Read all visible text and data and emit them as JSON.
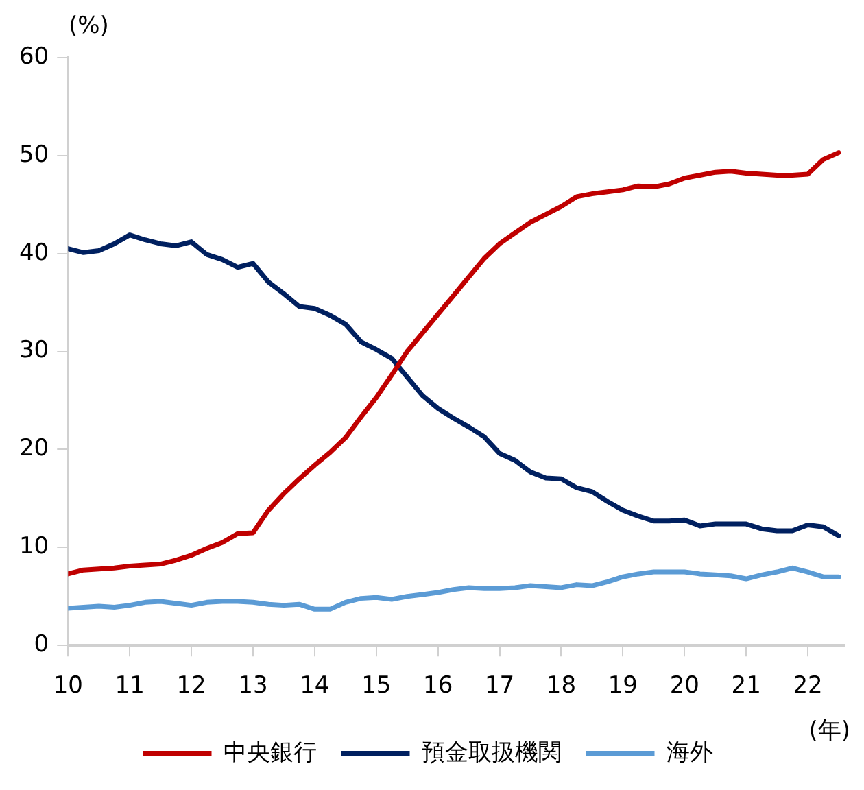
{
  "chart_data": {
    "type": "line",
    "ylabel": "(%)",
    "xlabel": "(年)",
    "x": [
      10,
      10.25,
      10.5,
      10.75,
      11,
      11.25,
      11.5,
      11.75,
      12,
      12.25,
      12.5,
      12.75,
      13,
      13.25,
      13.5,
      13.75,
      14,
      14.25,
      14.5,
      14.75,
      15,
      15.25,
      15.5,
      15.75,
      16,
      16.25,
      16.5,
      16.75,
      17,
      17.25,
      17.5,
      17.75,
      18,
      18.25,
      18.5,
      18.75,
      19,
      19.25,
      19.5,
      19.75,
      20,
      20.25,
      20.5,
      20.75,
      21,
      21.25,
      21.5,
      21.75,
      22,
      22.25,
      22.5
    ],
    "series": [
      {
        "name": "中央銀行",
        "color": "#c00000",
        "values": [
          7.3,
          7.7,
          7.8,
          7.9,
          8.1,
          8.2,
          8.3,
          8.7,
          9.2,
          9.9,
          10.5,
          11.4,
          11.5,
          13.8,
          15.5,
          17.0,
          18.4,
          19.7,
          21.2,
          23.3,
          25.3,
          27.6,
          30.0,
          31.9,
          33.8,
          35.7,
          37.6,
          39.5,
          41.0,
          42.1,
          43.2,
          44.0,
          44.8,
          45.8,
          46.1,
          46.3,
          46.5,
          46.9,
          46.8,
          47.1,
          47.7,
          48.0,
          48.3,
          48.4,
          48.2,
          48.1,
          48.0,
          48.0,
          48.1,
          49.6,
          50.3
        ]
      },
      {
        "name": "預金取扱機関",
        "color": "#002060",
        "values": [
          40.5,
          40.1,
          40.3,
          41.0,
          41.9,
          41.4,
          41.0,
          40.8,
          41.2,
          39.9,
          39.4,
          38.6,
          39.0,
          37.1,
          35.9,
          34.6,
          34.4,
          33.7,
          32.8,
          31.0,
          30.2,
          29.3,
          27.4,
          25.5,
          24.2,
          23.2,
          22.3,
          21.3,
          19.6,
          18.9,
          17.7,
          17.1,
          17.0,
          16.1,
          15.7,
          14.7,
          13.8,
          13.2,
          12.7,
          12.7,
          12.8,
          12.2,
          12.4,
          12.4,
          12.4,
          11.9,
          11.7,
          11.7,
          12.3,
          12.1,
          11.2
        ]
      },
      {
        "name": "海外",
        "color": "#5b9bd5",
        "values": [
          3.8,
          3.9,
          4.0,
          3.9,
          4.1,
          4.4,
          4.5,
          4.3,
          4.1,
          4.4,
          4.5,
          4.5,
          4.4,
          4.2,
          4.1,
          4.2,
          3.7,
          3.7,
          4.4,
          4.8,
          4.9,
          4.7,
          5.0,
          5.2,
          5.4,
          5.7,
          5.9,
          5.8,
          5.8,
          5.9,
          6.1,
          6.0,
          5.9,
          6.2,
          6.1,
          6.5,
          7.0,
          7.3,
          7.5,
          7.5,
          7.5,
          7.3,
          7.2,
          7.1,
          6.8,
          7.2,
          7.5,
          7.9,
          7.5,
          7.0,
          7.0
        ]
      }
    ],
    "xlim": [
      10,
      22.6
    ],
    "xticks": [
      10,
      11,
      12,
      13,
      14,
      15,
      16,
      17,
      18,
      19,
      20,
      21,
      22
    ],
    "ylim": [
      0,
      60
    ],
    "yticks": [
      0,
      10,
      20,
      30,
      40,
      50,
      60
    ],
    "grid": false,
    "legend": "bottom",
    "marker": "none",
    "line_style": "solid"
  }
}
